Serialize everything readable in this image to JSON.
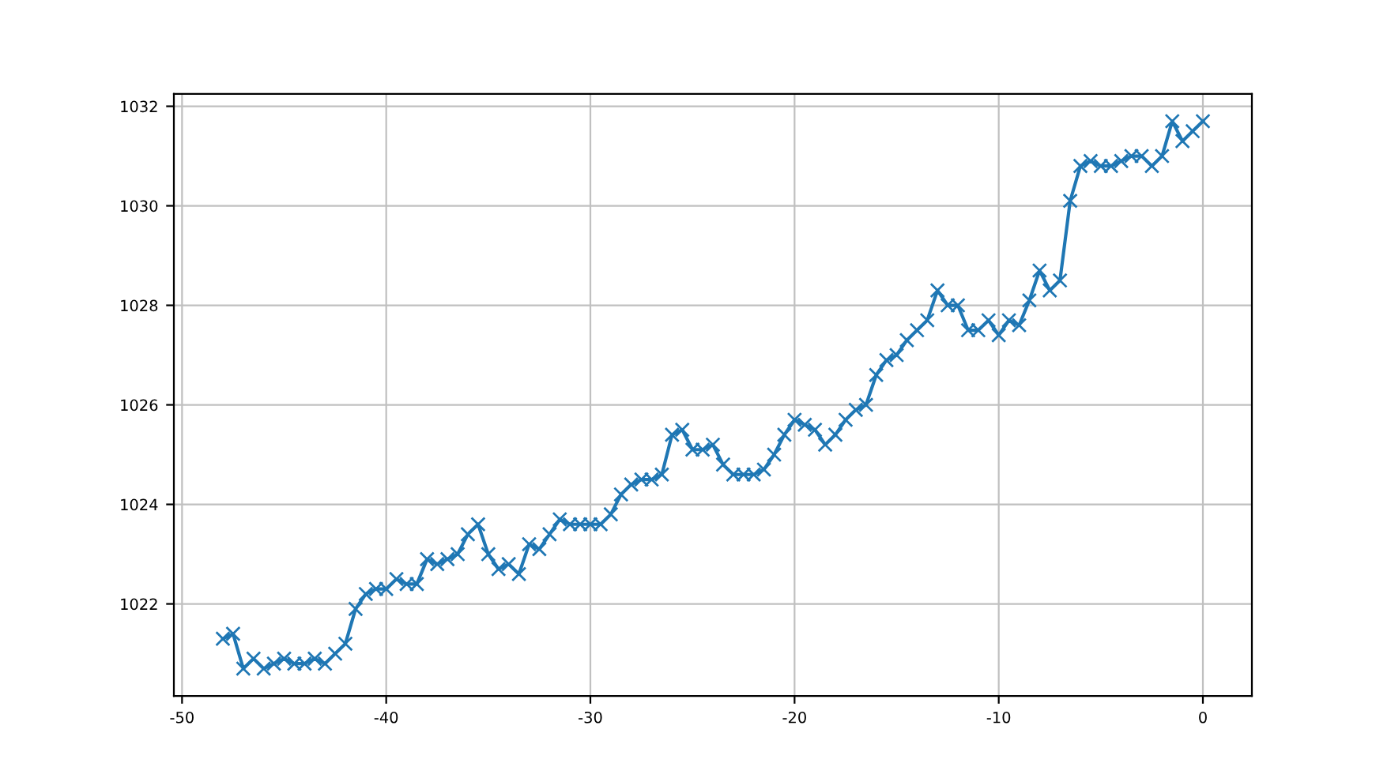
{
  "chart_data": {
    "type": "line",
    "marker": "cross",
    "grid": true,
    "xlim": [
      -50.4,
      2.4
    ],
    "ylim": [
      1020.15,
      1032.25
    ],
    "xticks": [
      -50,
      -40,
      -30,
      -20,
      -10,
      0
    ],
    "yticks": [
      1022,
      1024,
      1026,
      1028,
      1030,
      1032
    ],
    "x": [
      -48,
      -47.5,
      -47,
      -46.5,
      -46,
      -45.5,
      -45,
      -44.5,
      -44,
      -43.5,
      -43,
      -42.5,
      -42,
      -41.5,
      -41,
      -40.5,
      -40,
      -39.5,
      -39,
      -38.5,
      -38,
      -37.5,
      -37,
      -36.5,
      -36,
      -35.5,
      -35,
      -34.5,
      -34,
      -33.5,
      -33,
      -32.5,
      -32,
      -31.5,
      -31,
      -30.5,
      -30,
      -29.5,
      -29,
      -28.5,
      -28,
      -27.5,
      -27,
      -26.5,
      -26,
      -25.5,
      -25,
      -24.5,
      -24,
      -23.5,
      -23,
      -22.5,
      -22,
      -21.5,
      -21,
      -20.5,
      -20,
      -19.5,
      -19,
      -18.5,
      -18,
      -17.5,
      -17,
      -16.5,
      -16,
      -15.5,
      -15,
      -14.5,
      -14,
      -13.5,
      -13,
      -12.5,
      -12,
      -11.5,
      -11,
      -10.5,
      -10,
      -9.5,
      -9,
      -8.5,
      -8,
      -7.5,
      -7,
      -6.5,
      -6,
      -5.5,
      -5,
      -4.5,
      -4,
      -3.5,
      -3,
      -2.5,
      -2,
      -1.5,
      -1,
      -0.5,
      0
    ],
    "series": [
      {
        "color": "#1f77b4",
        "values": [
          1021.3,
          1021.4,
          1020.7,
          1020.9,
          1020.7,
          1020.8,
          1020.9,
          1020.8,
          1020.8,
          1020.9,
          1020.8,
          1021.0,
          1021.2,
          1021.9,
          1022.2,
          1022.3,
          1022.3,
          1022.5,
          1022.4,
          1022.4,
          1022.9,
          1022.8,
          1022.9,
          1023.0,
          1023.4,
          1023.6,
          1023.0,
          1022.7,
          1022.8,
          1022.6,
          1023.2,
          1023.1,
          1023.4,
          1023.7,
          1023.6,
          1023.6,
          1023.6,
          1023.6,
          1023.8,
          1024.2,
          1024.4,
          1024.5,
          1024.5,
          1024.6,
          1025.4,
          1025.5,
          1025.1,
          1025.1,
          1025.2,
          1024.8,
          1024.6,
          1024.6,
          1024.6,
          1024.7,
          1025.0,
          1025.4,
          1025.7,
          1025.6,
          1025.5,
          1025.2,
          1025.4,
          1025.7,
          1025.9,
          1026.0,
          1026.6,
          1026.9,
          1027.0,
          1027.3,
          1027.5,
          1027.7,
          1028.3,
          1028.0,
          1028.0,
          1027.5,
          1027.5,
          1027.7,
          1027.4,
          1027.7,
          1027.6,
          1028.1,
          1028.7,
          1028.3,
          1028.5,
          1030.1,
          1030.8,
          1030.9,
          1030.8,
          1030.8,
          1030.9,
          1031.0,
          1031.0,
          1030.8,
          1031.0,
          1031.7,
          1031.3,
          1031.5,
          1031.7
        ]
      }
    ]
  }
}
